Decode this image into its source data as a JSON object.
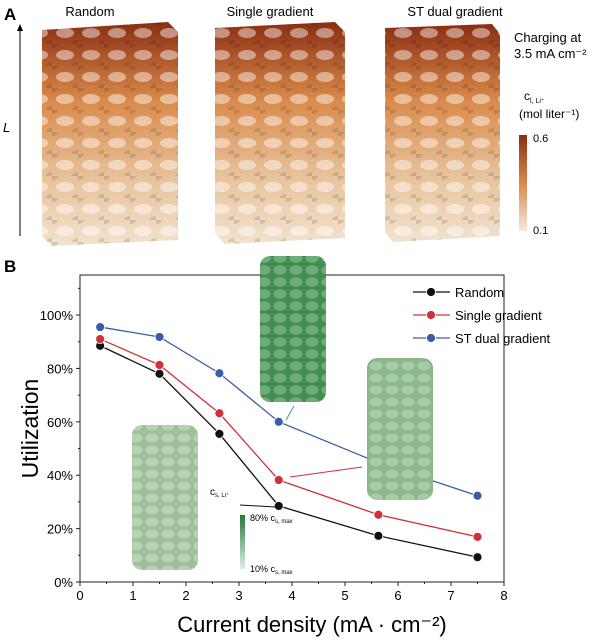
{
  "panel_a": {
    "label": "A",
    "columns": [
      "Random",
      "Single gradient",
      "ST dual gradient"
    ],
    "axis_label": "L",
    "condition_line1": "Charging at",
    "condition_line2": "3.5 mA cm⁻²",
    "colorbar_title": "c",
    "colorbar_subscript": "l, Li⁺",
    "colorbar_unit": "(mol liter⁻¹)",
    "colorbar_max": "0.6",
    "colorbar_min": "0.1",
    "colors": {
      "high": "#8a2e12",
      "mid": "#d98a4a",
      "low": "#f5eadc"
    }
  },
  "panel_b": {
    "label": "B",
    "inset_colorbar_title": "c",
    "inset_colorbar_subscript": "s, Li⁺",
    "inset_colorbar_max": "80% c",
    "inset_colorbar_min": "10% c",
    "inset_colorbar_sub": "s, max",
    "inset_colors": {
      "high": "#1f7a3a",
      "low": "#e3efe3"
    }
  },
  "chart_data": {
    "type": "line",
    "xlabel": "Current density (mA · cm⁻²)",
    "ylabel": "Utilization",
    "xlim": [
      0,
      8
    ],
    "ylim": [
      0,
      115
    ],
    "xticks": [
      "0",
      "1",
      "2",
      "3",
      "4",
      "5",
      "6",
      "7",
      "8"
    ],
    "yticks": [
      "0%",
      "20%",
      "40%",
      "60%",
      "80%",
      "100%"
    ],
    "legend_position": "top-right",
    "grid": false,
    "x": [
      0.38,
      1.5,
      2.63,
      3.75,
      5.63,
      7.5
    ],
    "series": [
      {
        "name": "Random",
        "color": "#111111",
        "values": [
          88.5,
          78,
          55.5,
          28.5,
          17.3,
          9.3
        ]
      },
      {
        "name": "Single gradient",
        "color": "#d0303a",
        "values": [
          91,
          81.3,
          63.2,
          38.2,
          25.2,
          16.9
        ]
      },
      {
        "name": "ST dual gradient",
        "color": "#3a5da8",
        "values": [
          95.5,
          91.8,
          78.2,
          60,
          44.7,
          32.3
        ]
      }
    ]
  }
}
